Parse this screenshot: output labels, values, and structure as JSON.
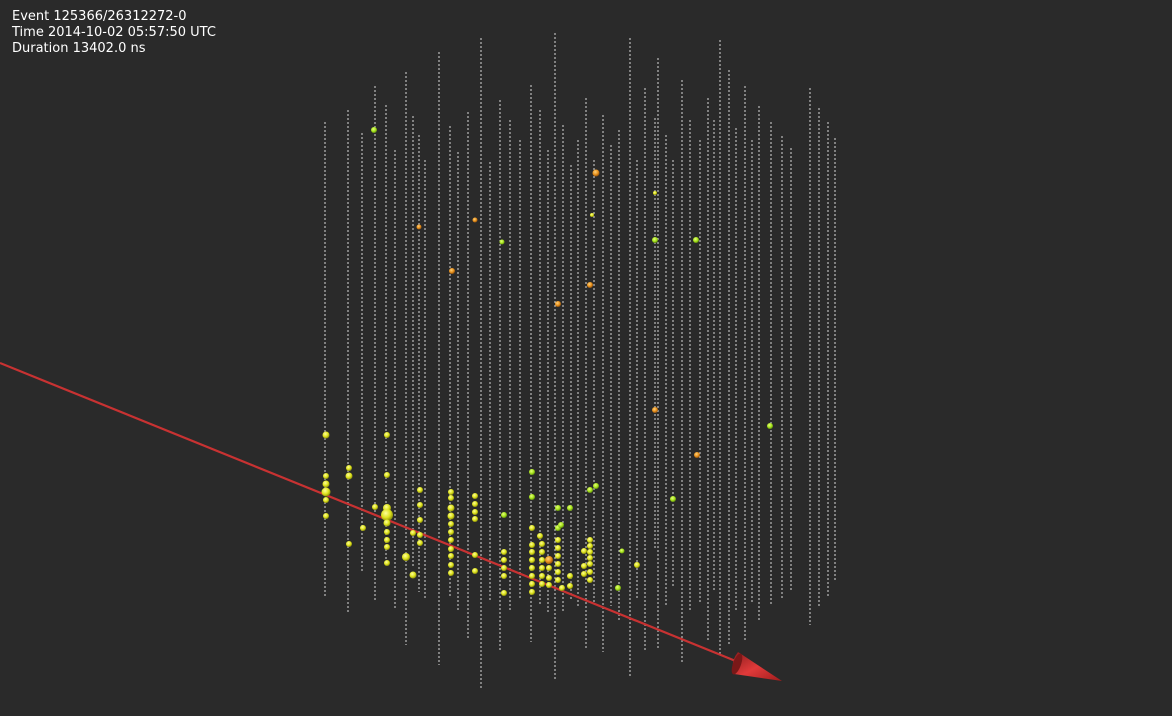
{
  "event_info": {
    "event_label": "Event 125366/26312272-0",
    "time_label": "Time 2014-10-02 05:57:50 UTC",
    "duration_label": "Duration 13402.0 ns"
  },
  "colors": {
    "background": "#2a2a2a",
    "string": "#d8d8d8",
    "track": "#c83232",
    "hit_early": "#a6e21c",
    "hit_late": "#e8901c"
  }
}
